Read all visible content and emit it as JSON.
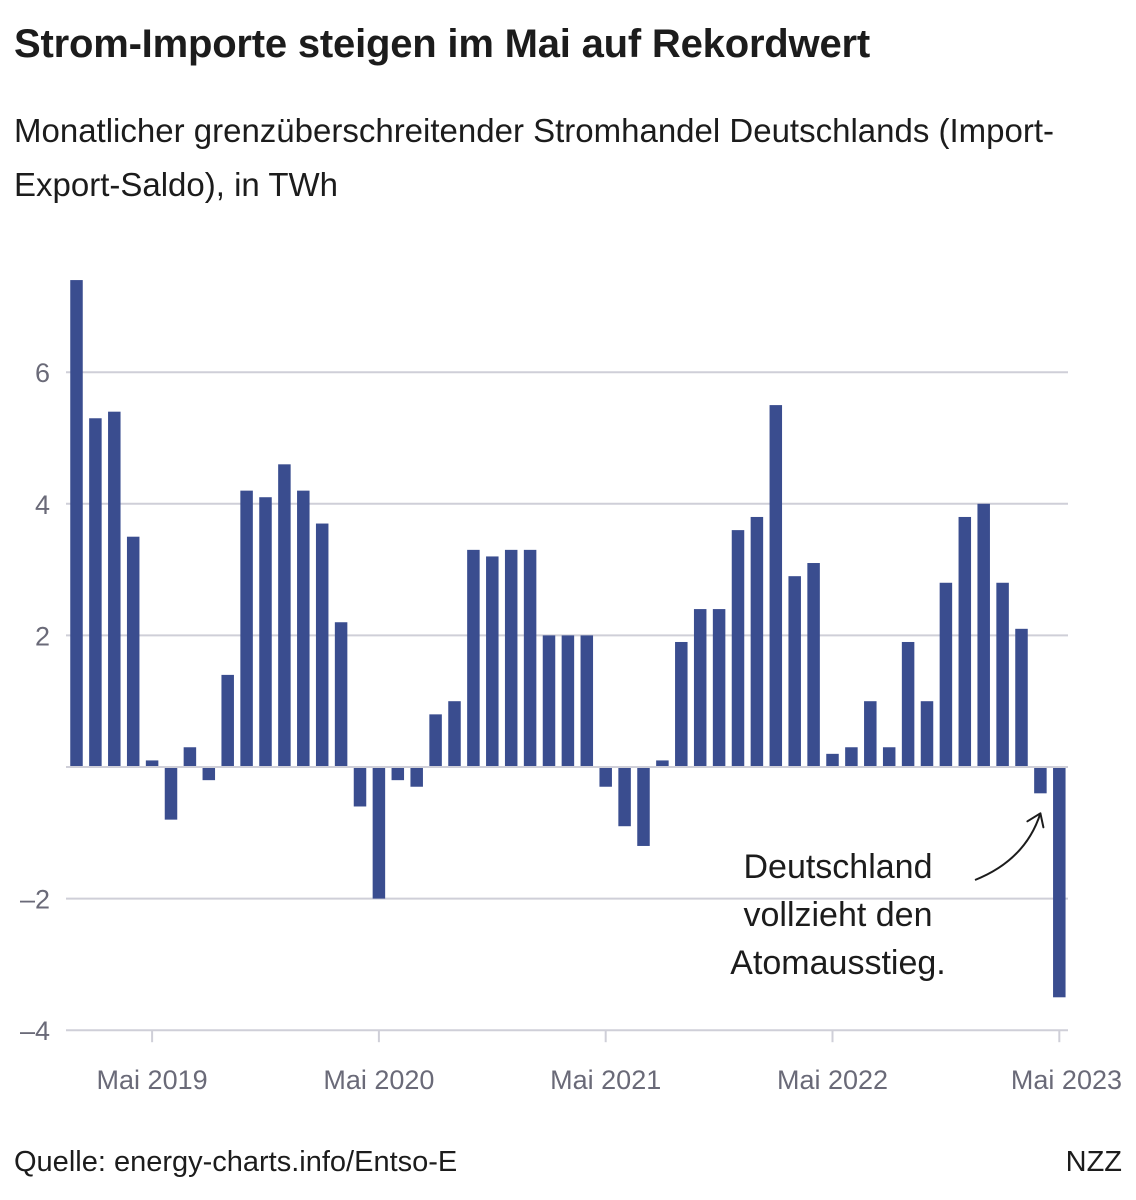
{
  "title": "Strom-Importe steigen im Mai auf Rekordwert",
  "subtitle": "Monatlicher grenzüberschreitender Stromhandel Deutschlands (Import-Export-Saldo), in TWh",
  "colors": {
    "bar": "#3a4d8f",
    "grid": "#cfcfd8",
    "axis_text": "#6a6a78",
    "text": "#1c1c1c"
  },
  "chart_data": {
    "type": "bar",
    "unit": "TWh",
    "ylim": [
      -4,
      7.5
    ],
    "yticks": [
      6,
      4,
      2,
      -2,
      -4
    ],
    "ytick_labels": [
      "6",
      "4",
      "2",
      "–2",
      "–4"
    ],
    "x_tick_labels": [
      {
        "index": 4,
        "label": "Mai 2019"
      },
      {
        "index": 16,
        "label": "Mai 2020"
      },
      {
        "index": 28,
        "label": "Mai 2021"
      },
      {
        "index": 40,
        "label": "Mai 2022"
      },
      {
        "index": 52,
        "label": "Mai 2023"
      }
    ],
    "series": [
      {
        "name": "Import-Export-Saldo",
        "values": [
          7.4,
          5.3,
          5.4,
          3.5,
          0.1,
          -0.8,
          0.3,
          -0.2,
          1.4,
          4.2,
          4.1,
          4.6,
          4.2,
          3.7,
          2.2,
          -0.6,
          -2.0,
          -0.2,
          -0.3,
          0.8,
          1.0,
          3.3,
          3.2,
          3.3,
          3.3,
          2.0,
          2.0,
          2.0,
          -0.3,
          -0.9,
          -1.2,
          0.1,
          1.9,
          2.4,
          2.4,
          3.6,
          3.8,
          5.5,
          2.9,
          3.1,
          0.2,
          0.3,
          1.0,
          0.3,
          1.9,
          1.0,
          2.8,
          3.8,
          4.0,
          2.8,
          2.1,
          -0.4,
          -3.5
        ]
      }
    ],
    "annotation": {
      "lines": [
        "Deutschland",
        "vollzieht den",
        "Atomausstieg."
      ],
      "target_index": 51
    }
  },
  "footer": {
    "source": "Quelle: energy-charts.info/Entso-E",
    "brand": "NZZ"
  }
}
